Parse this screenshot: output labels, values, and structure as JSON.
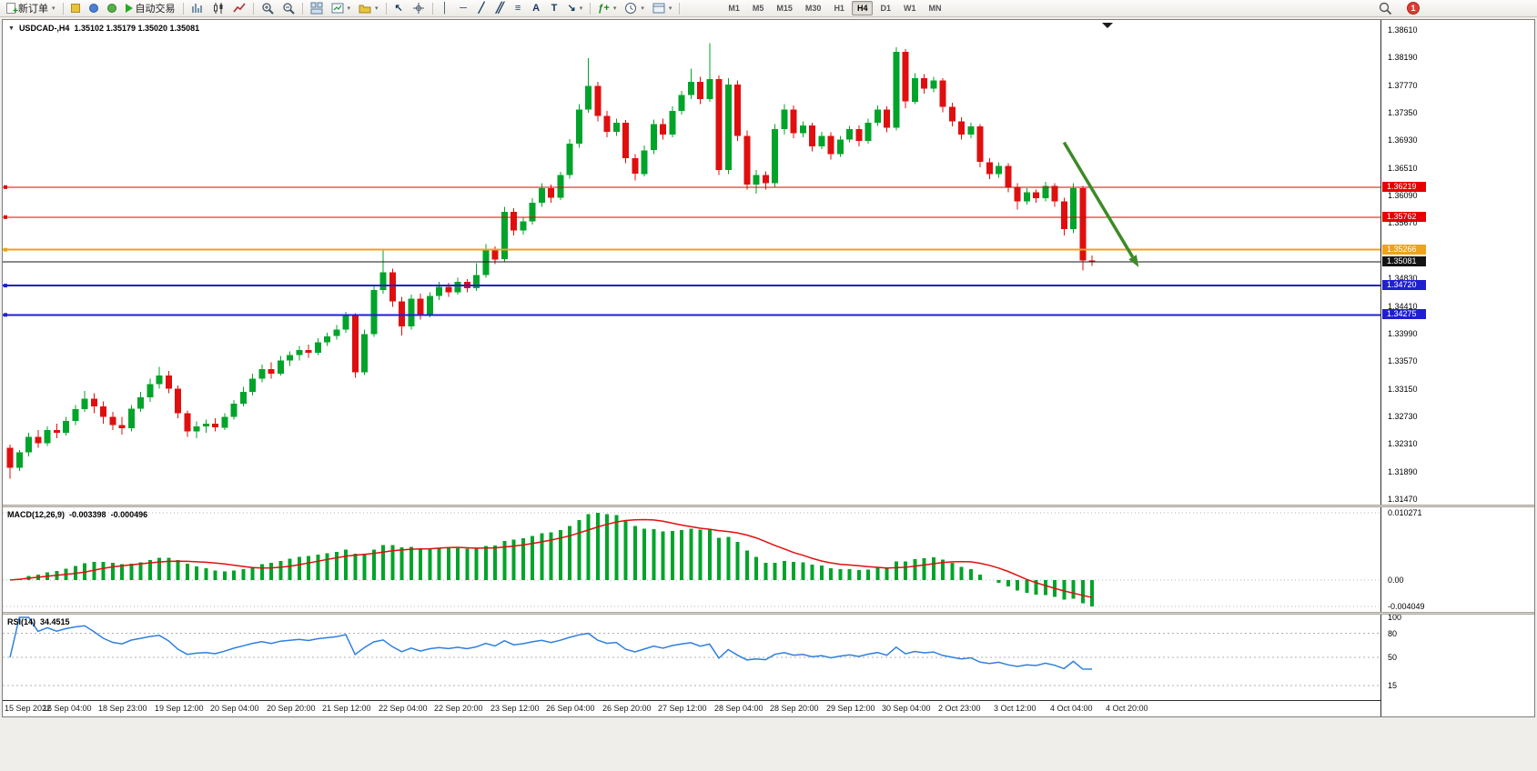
{
  "toolbar": {
    "new_order": "新订单",
    "autotrading": "自动交易",
    "timeframes": [
      "M1",
      "M5",
      "M15",
      "M30",
      "H1",
      "H4",
      "D1",
      "W1",
      "MN"
    ],
    "active_timeframe": "H4",
    "notification_count": "1",
    "icons": {
      "dropdown": "▾",
      "vline": "│",
      "hline": "─",
      "trend": "╱",
      "channel": "╱╱",
      "fibo": "≡",
      "text": "A",
      "label": "T",
      "arrows": "↘",
      "cursor": "↖",
      "indicator": "ƒ+"
    }
  },
  "chart": {
    "symbol_period": "USDCAD-,H4",
    "ohlc": "1.35102 1.35179 1.35020 1.35081",
    "price_axis": {
      "max": 1.3861,
      "min": 1.3147,
      "ticks": [
        "1.38610",
        "1.38190",
        "1.37770",
        "1.37350",
        "1.36930",
        "1.36510",
        "1.36090",
        "1.35670",
        "1.35250",
        "1.34830",
        "1.34410",
        "1.33990",
        "1.33570",
        "1.33150",
        "1.32730",
        "1.32310",
        "1.31890",
        "1.31470"
      ]
    },
    "levels": [
      {
        "price": 1.36219,
        "label": "1.36219",
        "color": "#e60000",
        "width": 1
      },
      {
        "price": 1.35762,
        "label": "1.35762",
        "color": "#e60000",
        "width": 1
      },
      {
        "price": 1.35266,
        "label": "1.35266",
        "color": "#efa21a",
        "width": 2
      },
      {
        "price": 1.35081,
        "label": "1.35081",
        "color": "#141414",
        "width": 1,
        "current": true
      },
      {
        "price": 1.3472,
        "label": "1.34720",
        "color": "#1f1fd0",
        "width": 2
      },
      {
        "price": 1.34275,
        "label": "1.34275",
        "color": "#1f1fd0",
        "width": 2
      }
    ],
    "annotation": {
      "type": "arrow",
      "color": "#3c8a28",
      "from": {
        "bar": 113,
        "price": 1.369
      },
      "to": {
        "bar": 121,
        "price": 1.35
      }
    }
  },
  "chart_data": {
    "type": "candlestick",
    "symbol": "USDCAD-",
    "timeframe": "H4",
    "up_color": "#00a42a",
    "down_color": "#e00f0f",
    "ylim": [
      1.3147,
      1.3861
    ],
    "x_labels": [
      "15 Sep 2022",
      "16 Sep 04:00",
      "18 Sep 23:00",
      "19 Sep 12:00",
      "20 Sep 04:00",
      "20 Sep 20:00",
      "21 Sep 12:00",
      "22 Sep 04:00",
      "22 Sep 20:00",
      "23 Sep 12:00",
      "26 Sep 04:00",
      "26 Sep 20:00",
      "27 Sep 12:00",
      "28 Sep 04:00",
      "28 Sep 20:00",
      "29 Sep 12:00",
      "30 Sep 04:00",
      "2 Oct 23:00",
      "3 Oct 12:00",
      "4 Oct 04:00",
      "4 Oct 20:00"
    ],
    "candles": [
      [
        1.3225,
        1.323,
        1.3178,
        1.3195
      ],
      [
        1.3195,
        1.3222,
        1.319,
        1.3218
      ],
      [
        1.3218,
        1.3248,
        1.3212,
        1.3242
      ],
      [
        1.3242,
        1.3252,
        1.3225,
        1.3232
      ],
      [
        1.3232,
        1.3258,
        1.3228,
        1.3252
      ],
      [
        1.3252,
        1.3262,
        1.324,
        1.3248
      ],
      [
        1.3248,
        1.3272,
        1.3244,
        1.3266
      ],
      [
        1.3266,
        1.329,
        1.326,
        1.3284
      ],
      [
        1.3284,
        1.3312,
        1.328,
        1.33
      ],
      [
        1.33,
        1.3308,
        1.3278,
        1.3288
      ],
      [
        1.3288,
        1.3296,
        1.3262,
        1.3272
      ],
      [
        1.3272,
        1.328,
        1.3252,
        1.326
      ],
      [
        1.326,
        1.3272,
        1.3245,
        1.3255
      ],
      [
        1.3255,
        1.329,
        1.325,
        1.3285
      ],
      [
        1.3285,
        1.331,
        1.328,
        1.3302
      ],
      [
        1.3302,
        1.333,
        1.3295,
        1.3322
      ],
      [
        1.3322,
        1.3348,
        1.3315,
        1.3335
      ],
      [
        1.3335,
        1.3342,
        1.3308,
        1.3315
      ],
      [
        1.3315,
        1.332,
        1.327,
        1.3278
      ],
      [
        1.3278,
        1.3282,
        1.3242,
        1.325
      ],
      [
        1.325,
        1.3265,
        1.324,
        1.3258
      ],
      [
        1.3258,
        1.3268,
        1.3248,
        1.3262
      ],
      [
        1.3262,
        1.327,
        1.325,
        1.3256
      ],
      [
        1.3256,
        1.3278,
        1.3252,
        1.3272
      ],
      [
        1.3272,
        1.3298,
        1.3268,
        1.3292
      ],
      [
        1.3292,
        1.3318,
        1.3288,
        1.331
      ],
      [
        1.331,
        1.3338,
        1.3305,
        1.333
      ],
      [
        1.333,
        1.3352,
        1.3325,
        1.3345
      ],
      [
        1.3345,
        1.3355,
        1.333,
        1.3338
      ],
      [
        1.3338,
        1.3365,
        1.3335,
        1.3358
      ],
      [
        1.3358,
        1.3372,
        1.335,
        1.3366
      ],
      [
        1.3366,
        1.338,
        1.3358,
        1.3374
      ],
      [
        1.3374,
        1.3382,
        1.3362,
        1.337
      ],
      [
        1.337,
        1.3392,
        1.3366,
        1.3386
      ],
      [
        1.3386,
        1.34,
        1.338,
        1.3395
      ],
      [
        1.3395,
        1.3412,
        1.339,
        1.3405
      ],
      [
        1.3405,
        1.3432,
        1.34,
        1.3426
      ],
      [
        1.3426,
        1.343,
        1.3332,
        1.334
      ],
      [
        1.334,
        1.3405,
        1.3336,
        1.3398
      ],
      [
        1.3398,
        1.3472,
        1.3394,
        1.3465
      ],
      [
        1.3465,
        1.3528,
        1.346,
        1.3492
      ],
      [
        1.3492,
        1.3498,
        1.344,
        1.3448
      ],
      [
        1.3448,
        1.3455,
        1.3396,
        1.341
      ],
      [
        1.341,
        1.3458,
        1.3405,
        1.3452
      ],
      [
        1.3452,
        1.346,
        1.342,
        1.3428
      ],
      [
        1.3428,
        1.3462,
        1.3424,
        1.3456
      ],
      [
        1.3456,
        1.3478,
        1.345,
        1.347
      ],
      [
        1.347,
        1.3476,
        1.3455,
        1.3462
      ],
      [
        1.3462,
        1.3484,
        1.3458,
        1.3478
      ],
      [
        1.3478,
        1.3482,
        1.3462,
        1.3468
      ],
      [
        1.3468,
        1.3506,
        1.3464,
        1.3488
      ],
      [
        1.3488,
        1.3535,
        1.3484,
        1.3528
      ],
      [
        1.3528,
        1.3532,
        1.3505,
        1.3512
      ],
      [
        1.3512,
        1.3592,
        1.3508,
        1.3584
      ],
      [
        1.3584,
        1.359,
        1.3548,
        1.3556
      ],
      [
        1.3556,
        1.3576,
        1.355,
        1.357
      ],
      [
        1.357,
        1.3605,
        1.3565,
        1.3598
      ],
      [
        1.3598,
        1.3628,
        1.3592,
        1.362
      ],
      [
        1.362,
        1.3626,
        1.3598,
        1.3606
      ],
      [
        1.3606,
        1.3645,
        1.3602,
        1.364
      ],
      [
        1.364,
        1.3695,
        1.3635,
        1.3688
      ],
      [
        1.3688,
        1.3748,
        1.3682,
        1.374
      ],
      [
        1.374,
        1.3818,
        1.3735,
        1.3776
      ],
      [
        1.3776,
        1.3782,
        1.3722,
        1.373
      ],
      [
        1.373,
        1.3738,
        1.3698,
        1.3706
      ],
      [
        1.3706,
        1.3726,
        1.37,
        1.372
      ],
      [
        1.372,
        1.3724,
        1.3658,
        1.3666
      ],
      [
        1.3666,
        1.3672,
        1.3632,
        1.3642
      ],
      [
        1.3642,
        1.3685,
        1.3638,
        1.3678
      ],
      [
        1.3678,
        1.3725,
        1.3672,
        1.3718
      ],
      [
        1.3718,
        1.3726,
        1.3694,
        1.3702
      ],
      [
        1.3702,
        1.3745,
        1.3698,
        1.3738
      ],
      [
        1.3738,
        1.3768,
        1.3732,
        1.3762
      ],
      [
        1.3762,
        1.3802,
        1.3756,
        1.3782
      ],
      [
        1.3782,
        1.379,
        1.3748,
        1.3756
      ],
      [
        1.3756,
        1.3841,
        1.3752,
        1.3786
      ],
      [
        1.3786,
        1.3792,
        1.364,
        1.3648
      ],
      [
        1.3648,
        1.3788,
        1.3642,
        1.3778
      ],
      [
        1.3778,
        1.3784,
        1.3692,
        1.37
      ],
      [
        1.37,
        1.3708,
        1.3618,
        1.3626
      ],
      [
        1.3626,
        1.3648,
        1.3612,
        1.364
      ],
      [
        1.364,
        1.3646,
        1.3618,
        1.3628
      ],
      [
        1.3628,
        1.3718,
        1.3622,
        1.371
      ],
      [
        1.371,
        1.3748,
        1.3702,
        1.374
      ],
      [
        1.374,
        1.3746,
        1.3696,
        1.3704
      ],
      [
        1.3704,
        1.3722,
        1.3698,
        1.3716
      ],
      [
        1.3716,
        1.372,
        1.3676,
        1.3684
      ],
      [
        1.3684,
        1.3706,
        1.368,
        1.37
      ],
      [
        1.37,
        1.3705,
        1.3664,
        1.3672
      ],
      [
        1.3672,
        1.37,
        1.3668,
        1.3694
      ],
      [
        1.3694,
        1.3715,
        1.369,
        1.371
      ],
      [
        1.371,
        1.3716,
        1.3684,
        1.3692
      ],
      [
        1.3692,
        1.3726,
        1.3688,
        1.372
      ],
      [
        1.372,
        1.3746,
        1.3715,
        1.374
      ],
      [
        1.374,
        1.3745,
        1.3705,
        1.3712
      ],
      [
        1.3712,
        1.3835,
        1.3708,
        1.3828
      ],
      [
        1.3828,
        1.3832,
        1.3742,
        1.3752
      ],
      [
        1.3752,
        1.3795,
        1.3748,
        1.3788
      ],
      [
        1.3788,
        1.3794,
        1.3764,
        1.3772
      ],
      [
        1.3772,
        1.379,
        1.3766,
        1.3784
      ],
      [
        1.3784,
        1.3788,
        1.3736,
        1.3744
      ],
      [
        1.3744,
        1.375,
        1.3714,
        1.3722
      ],
      [
        1.3722,
        1.3728,
        1.3694,
        1.3702
      ],
      [
        1.3702,
        1.372,
        1.3696,
        1.3714
      ],
      [
        1.3714,
        1.3718,
        1.3652,
        1.366
      ],
      [
        1.366,
        1.3666,
        1.3634,
        1.3642
      ],
      [
        1.3642,
        1.366,
        1.3636,
        1.3654
      ],
      [
        1.3654,
        1.3658,
        1.3614,
        1.3622
      ],
      [
        1.3622,
        1.3628,
        1.3588,
        1.36
      ],
      [
        1.36,
        1.362,
        1.3595,
        1.3614
      ],
      [
        1.3614,
        1.3618,
        1.3598,
        1.3605
      ],
      [
        1.3605,
        1.363,
        1.36,
        1.3624
      ],
      [
        1.3624,
        1.3628,
        1.3592,
        1.36
      ],
      [
        1.36,
        1.3606,
        1.3548,
        1.3558
      ],
      [
        1.3558,
        1.3628,
        1.3552,
        1.362
      ],
      [
        1.362,
        1.3624,
        1.3495,
        1.351
      ],
      [
        1.35102,
        1.35179,
        1.3502,
        1.35081
      ]
    ]
  },
  "macd": {
    "label": "MACD(12,26,9)",
    "value_main": "-0.003398",
    "value_signal": "-0.000496",
    "ticks": [
      "0.010271",
      "0.00",
      "-0.004049"
    ],
    "axis_max": 0.010271,
    "axis_min": -0.004049,
    "fast": 12,
    "slow": 26,
    "signal_period": 9,
    "histogram_color": "#00a42a",
    "signal_color": "#e00f0f"
  },
  "rsi": {
    "label": "RSI(14)",
    "value": "34.4515",
    "period": 14,
    "ticks": [
      100,
      80,
      50,
      15
    ],
    "levels": [
      80,
      50,
      15
    ],
    "line_color": "#2f7fe0"
  }
}
